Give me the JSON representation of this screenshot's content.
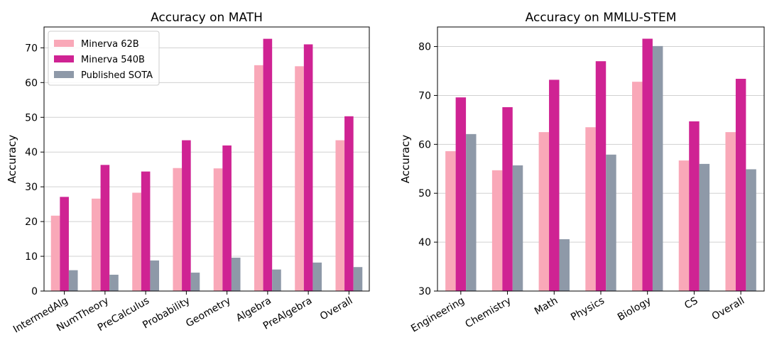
{
  "chart_data": [
    {
      "type": "bar",
      "title": "Accuracy on MATH",
      "xlabel": "",
      "ylabel": "Accuracy",
      "ylim": [
        0,
        76
      ],
      "yticks": [
        0,
        10,
        20,
        30,
        40,
        50,
        60,
        70
      ],
      "grid": true,
      "legend_position": "top-left",
      "categories": [
        "IntermedAlg",
        "NumTheory",
        "PreCalculus",
        "Probability",
        "Geometry",
        "Algebra",
        "PreAlgebra",
        "Overall"
      ],
      "series": [
        {
          "name": "Minerva 62B",
          "color": "#f9a8b8",
          "values": [
            21.7,
            26.6,
            28.3,
            35.4,
            35.3,
            65.0,
            64.7,
            43.4
          ]
        },
        {
          "name": "Minerva 540B",
          "color": "#cf2393",
          "values": [
            27.1,
            36.3,
            34.4,
            43.4,
            41.9,
            72.6,
            71.0,
            50.3
          ]
        },
        {
          "name": "Published SOTA",
          "color": "#8e99a8",
          "values": [
            6.0,
            4.7,
            8.8,
            5.3,
            9.6,
            6.2,
            8.2,
            6.9
          ]
        }
      ]
    },
    {
      "type": "bar",
      "title": "Accuracy on MMLU-STEM",
      "xlabel": "",
      "ylabel": "Accuracy",
      "ylim": [
        30,
        84
      ],
      "yticks": [
        30,
        40,
        50,
        60,
        70,
        80
      ],
      "grid": true,
      "categories": [
        "Engineering",
        "Chemistry",
        "Math",
        "Physics",
        "Biology",
        "CS",
        "Overall"
      ],
      "series": [
        {
          "name": "Minerva 62B",
          "color": "#f9a8b8",
          "values": [
            58.6,
            54.7,
            62.5,
            63.5,
            72.8,
            56.7,
            62.5
          ]
        },
        {
          "name": "Minerva 540B",
          "color": "#cf2393",
          "values": [
            69.6,
            67.6,
            73.2,
            77.0,
            81.6,
            64.7,
            73.4
          ]
        },
        {
          "name": "Published SOTA",
          "color": "#8e99a8",
          "values": [
            62.1,
            55.7,
            40.6,
            57.9,
            80.1,
            56.0,
            54.9
          ]
        }
      ]
    }
  ]
}
